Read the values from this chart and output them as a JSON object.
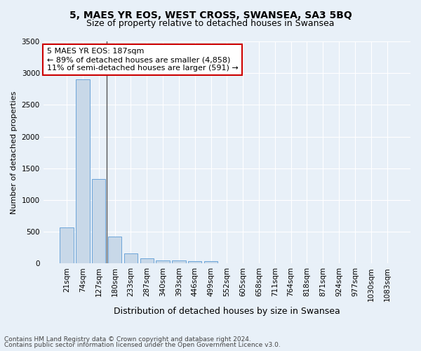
{
  "title": "5, MAES YR EOS, WEST CROSS, SWANSEA, SA3 5BQ",
  "subtitle": "Size of property relative to detached houses in Swansea",
  "xlabel": "Distribution of detached houses by size in Swansea",
  "ylabel": "Number of detached properties",
  "categories": [
    "21sqm",
    "74sqm",
    "127sqm",
    "180sqm",
    "233sqm",
    "287sqm",
    "340sqm",
    "393sqm",
    "446sqm",
    "499sqm",
    "552sqm",
    "605sqm",
    "658sqm",
    "711sqm",
    "764sqm",
    "818sqm",
    "871sqm",
    "924sqm",
    "977sqm",
    "1030sqm",
    "1083sqm"
  ],
  "values": [
    570,
    2900,
    1330,
    420,
    155,
    80,
    50,
    45,
    40,
    35,
    2,
    1,
    1,
    1,
    1,
    1,
    1,
    1,
    1,
    1,
    1
  ],
  "bar_color": "#c8d8e8",
  "bar_edge_color": "#5b9bd5",
  "vline_index": 2.5,
  "annotation_box_text": "5 MAES YR EOS: 187sqm\n← 89% of detached houses are smaller (4,858)\n11% of semi-detached houses are larger (591) →",
  "annotation_box_facecolor": "#ffffff",
  "annotation_box_edgecolor": "#cc0000",
  "ylim": [
    0,
    3500
  ],
  "yticks": [
    0,
    500,
    1000,
    1500,
    2000,
    2500,
    3000,
    3500
  ],
  "background_color": "#e8f0f8",
  "grid_color": "#ffffff",
  "footer_line1": "Contains HM Land Registry data © Crown copyright and database right 2024.",
  "footer_line2": "Contains public sector information licensed under the Open Government Licence v3.0.",
  "title_fontsize": 10,
  "subtitle_fontsize": 9,
  "xlabel_fontsize": 9,
  "ylabel_fontsize": 8,
  "tick_fontsize": 7.5,
  "annotation_fontsize": 8,
  "footer_fontsize": 6.5
}
